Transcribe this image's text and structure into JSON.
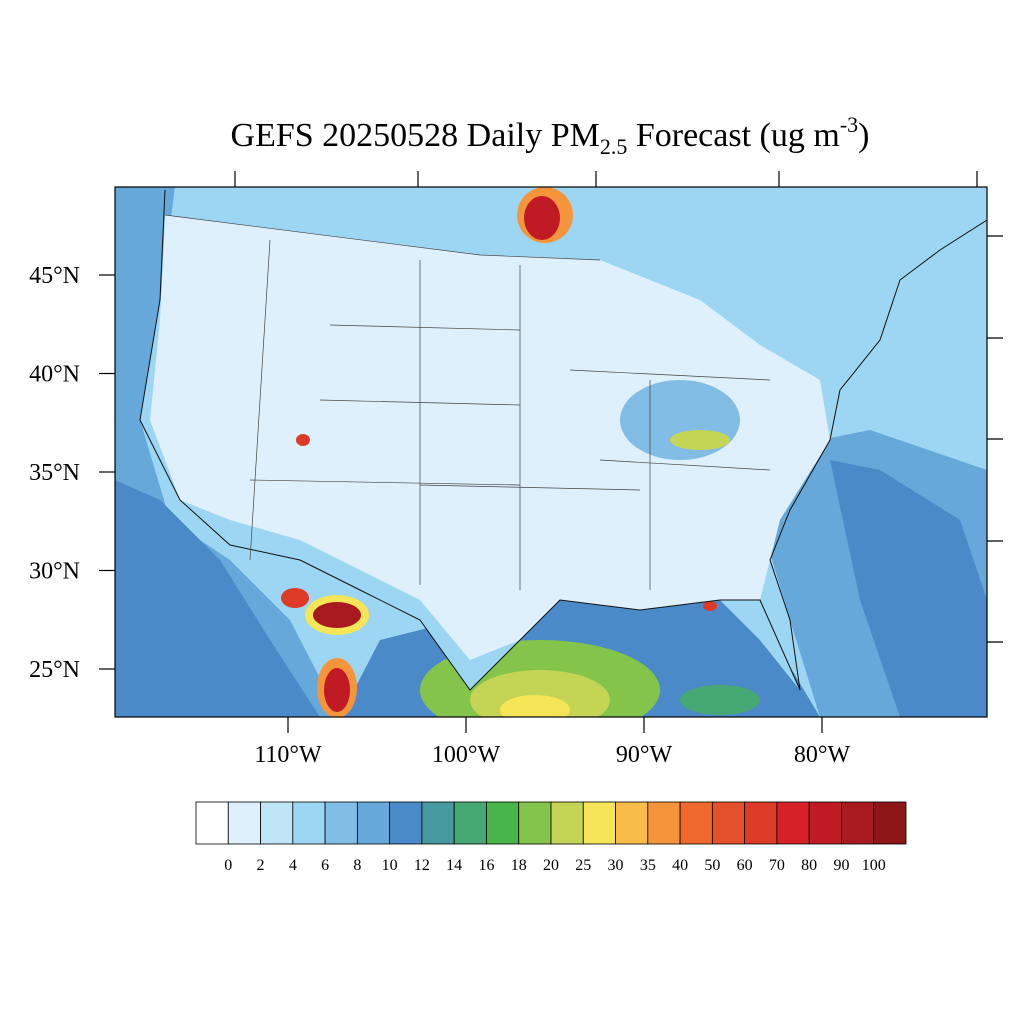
{
  "map": {
    "title": [
      "GEFS 20250528 Daily PM",
      "2.5",
      " Forecast (ug m",
      "-3",
      ")"
    ],
    "lat_labels": [
      {
        "value": 45,
        "label": "45°N"
      },
      {
        "value": 40,
        "label": "40°N"
      },
      {
        "value": 35,
        "label": "35°N"
      },
      {
        "value": 30,
        "label": "30°N"
      },
      {
        "value": 25,
        "label": "25°N"
      }
    ],
    "lon_labels": [
      {
        "value": -110,
        "label": "110°W"
      },
      {
        "value": -100,
        "label": "100°W"
      },
      {
        "value": -90,
        "label": "90°W"
      },
      {
        "value": -80,
        "label": "80°W"
      }
    ],
    "colorbar": {
      "levels": [
        0,
        2,
        4,
        6,
        8,
        10,
        12,
        14,
        16,
        18,
        20,
        25,
        30,
        35,
        40,
        50,
        60,
        70,
        80,
        90,
        100
      ],
      "colors": [
        "#ffffff",
        "#ddf0fb",
        "#bfe5f7",
        "#9dd6f3",
        "#82bde6",
        "#66a8da",
        "#4a8ac8",
        "#46999e",
        "#46a872",
        "#47b54a",
        "#85c44b",
        "#c4d556",
        "#f6e657",
        "#f7bd48",
        "#f5953b",
        "#f06a2d",
        "#e4502a",
        "#dd3a28",
        "#d62128",
        "#c01a25",
        "#a81a20",
        "#8e1518"
      ]
    }
  }
}
